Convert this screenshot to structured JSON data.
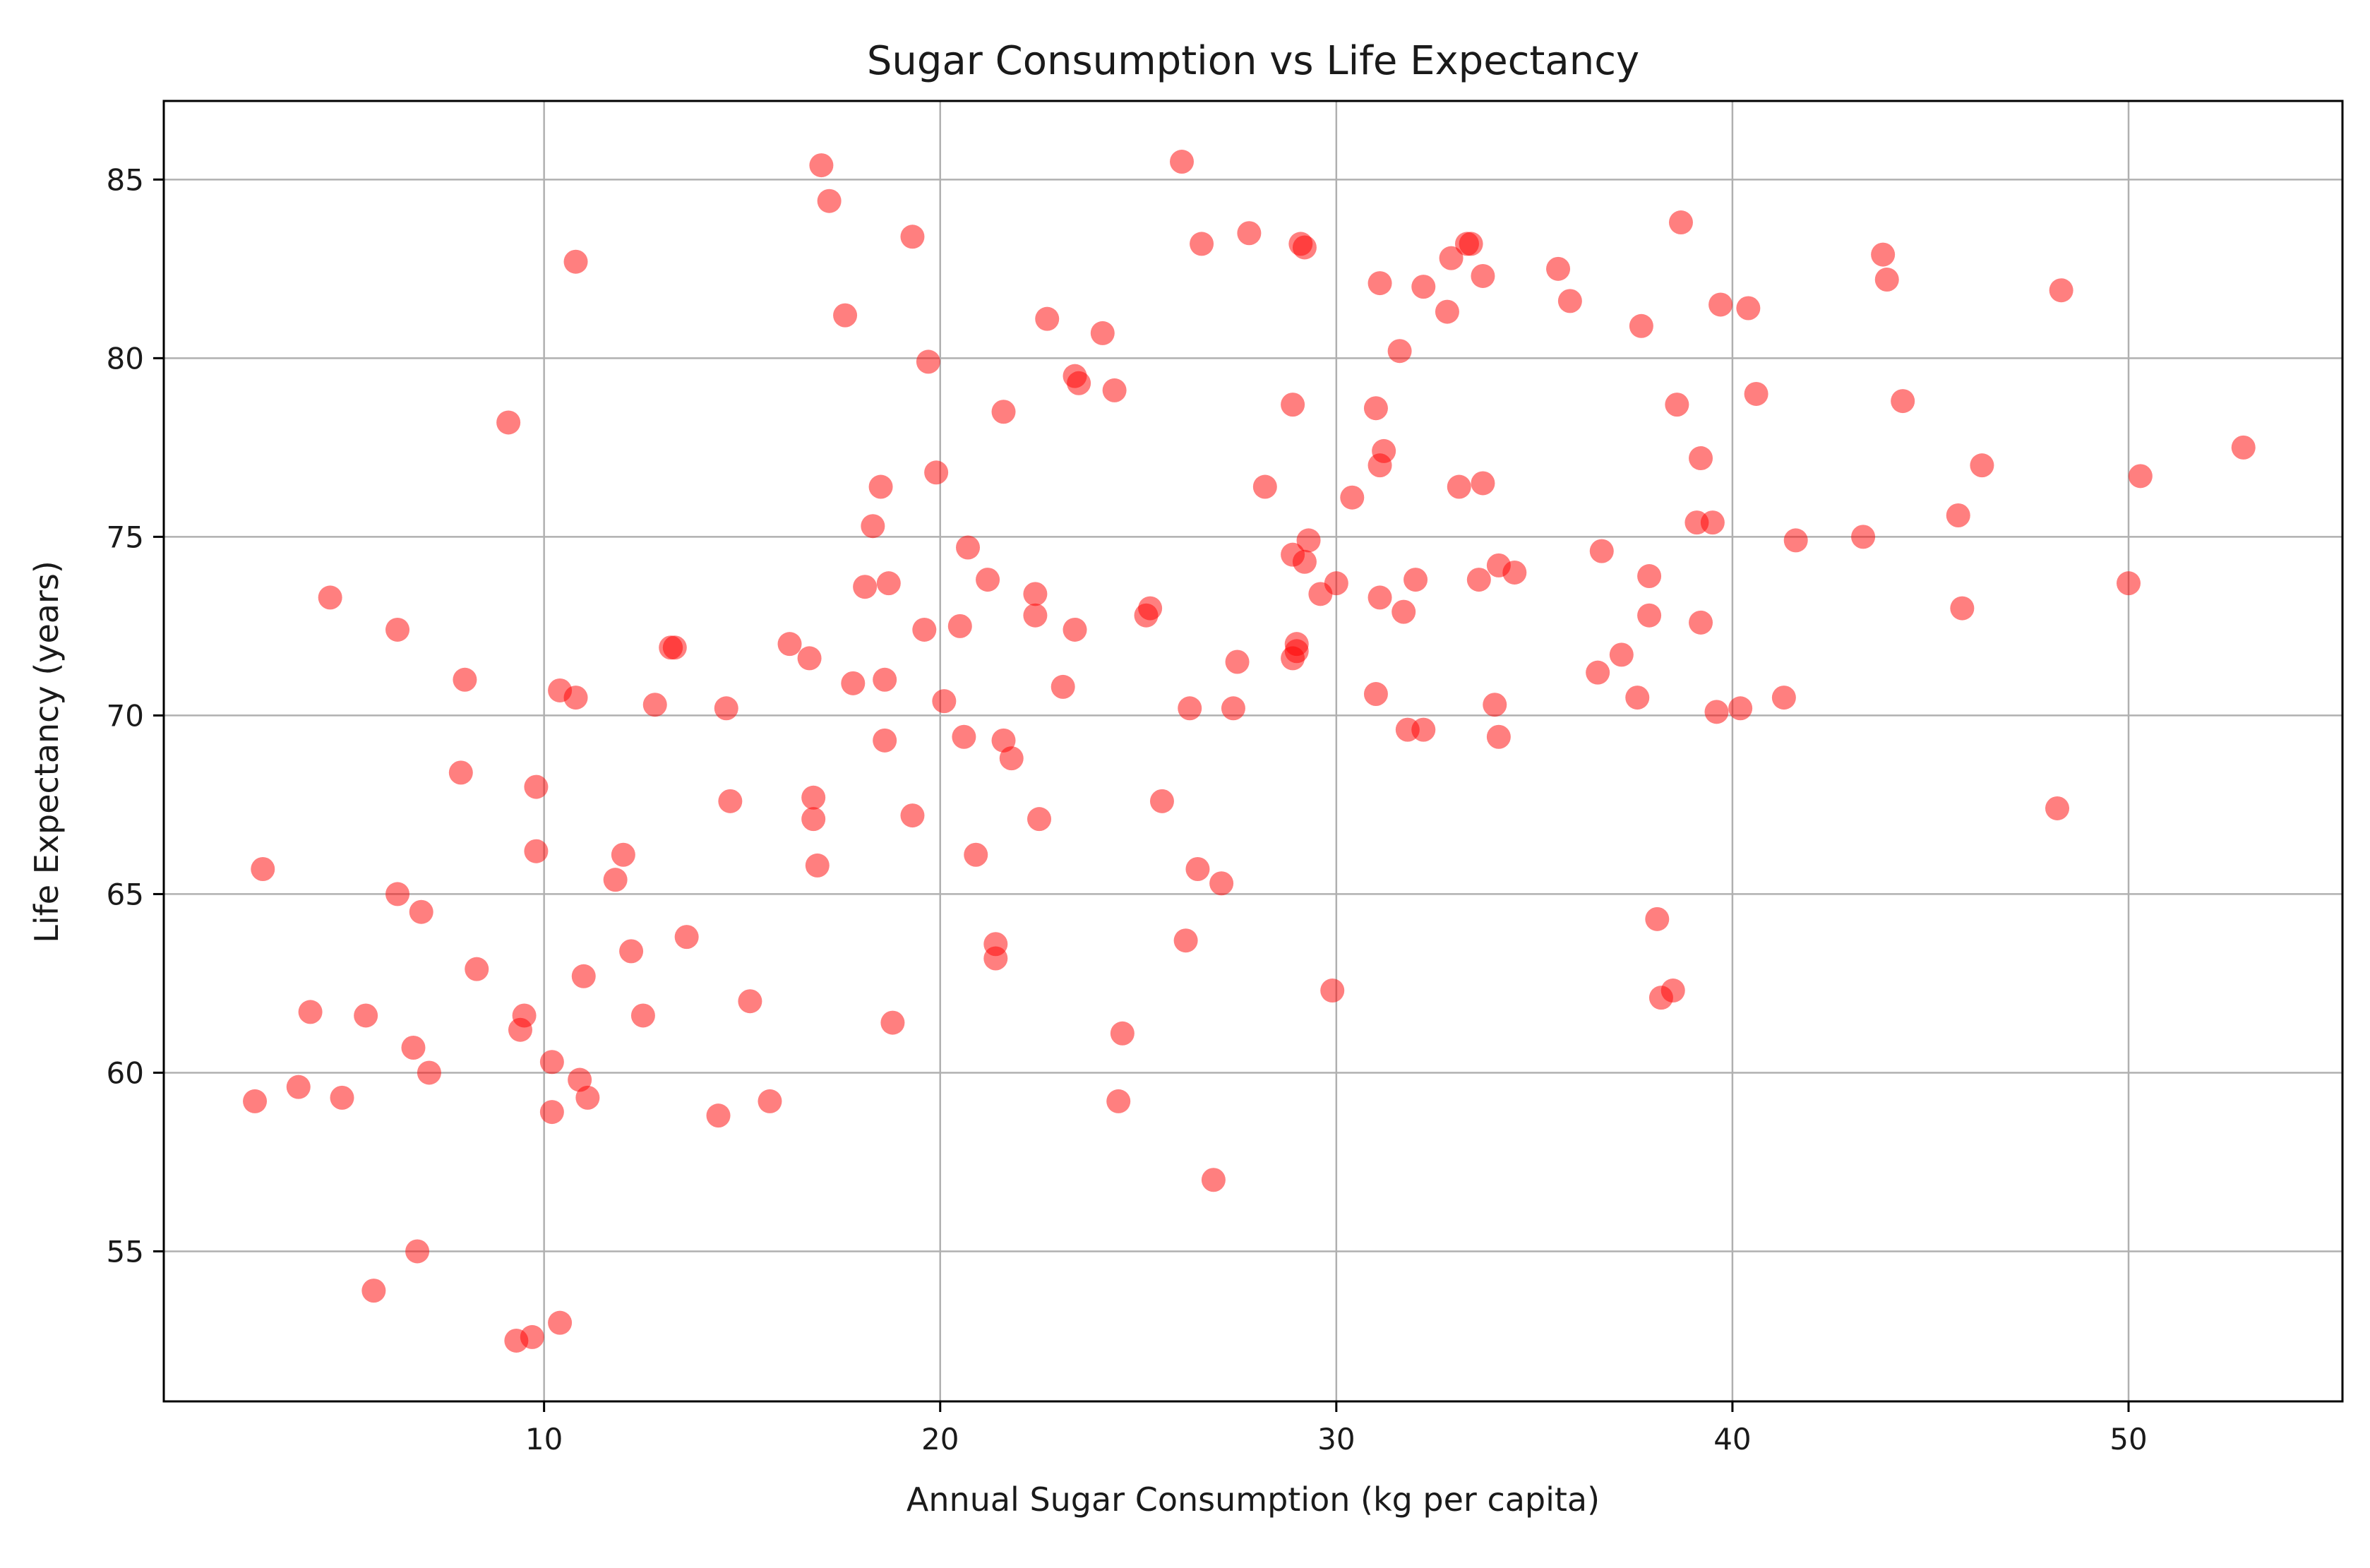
{
  "chart_data": {
    "type": "scatter",
    "title": "Sugar Consumption vs Life Expectancy",
    "xlabel": "Annual Sugar Consumption (kg per capita)",
    "ylabel": "Life Expectancy (years)",
    "xlim": [
      0.4,
      55.4
    ],
    "ylim": [
      50.8,
      87.2
    ],
    "xticks": [
      10,
      20,
      30,
      40,
      50
    ],
    "yticks": [
      55,
      60,
      65,
      70,
      75,
      80,
      85
    ],
    "grid": true,
    "point_color": "#ff0000",
    "point_opacity": 0.5,
    "points": [
      [
        2.9,
        65.7
      ],
      [
        2.7,
        59.2
      ],
      [
        3.8,
        59.6
      ],
      [
        4.1,
        61.7
      ],
      [
        4.6,
        73.3
      ],
      [
        4.9,
        59.3
      ],
      [
        5.5,
        61.6
      ],
      [
        5.7,
        53.9
      ],
      [
        6.3,
        72.4
      ],
      [
        6.3,
        65.0
      ],
      [
        6.7,
        60.7
      ],
      [
        6.8,
        55.0
      ],
      [
        6.9,
        64.5
      ],
      [
        7.1,
        60.0
      ],
      [
        7.9,
        68.4
      ],
      [
        8.0,
        71.0
      ],
      [
        8.3,
        62.9
      ],
      [
        9.1,
        78.2
      ],
      [
        9.3,
        52.5
      ],
      [
        9.4,
        61.2
      ],
      [
        9.5,
        61.6
      ],
      [
        9.7,
        52.6
      ],
      [
        9.8,
        68.0
      ],
      [
        9.8,
        66.2
      ],
      [
        10.2,
        58.9
      ],
      [
        10.2,
        60.3
      ],
      [
        10.4,
        70.7
      ],
      [
        10.4,
        53.0
      ],
      [
        10.8,
        82.7
      ],
      [
        10.8,
        70.5
      ],
      [
        10.9,
        59.8
      ],
      [
        11.0,
        62.7
      ],
      [
        11.1,
        59.3
      ],
      [
        11.8,
        65.4
      ],
      [
        12.0,
        66.1
      ],
      [
        12.2,
        63.4
      ],
      [
        12.5,
        61.6
      ],
      [
        12.8,
        70.3
      ],
      [
        13.2,
        71.9
      ],
      [
        13.3,
        71.9
      ],
      [
        13.6,
        63.8
      ],
      [
        14.4,
        58.8
      ],
      [
        14.6,
        70.2
      ],
      [
        14.7,
        67.6
      ],
      [
        15.2,
        62.0
      ],
      [
        15.7,
        59.2
      ],
      [
        16.2,
        72.0
      ],
      [
        16.7,
        71.6
      ],
      [
        16.8,
        67.7
      ],
      [
        16.8,
        67.1
      ],
      [
        16.9,
        65.8
      ],
      [
        17.0,
        85.4
      ],
      [
        17.2,
        84.4
      ],
      [
        17.6,
        81.2
      ],
      [
        17.8,
        70.9
      ],
      [
        18.1,
        73.6
      ],
      [
        18.3,
        75.3
      ],
      [
        18.5,
        76.4
      ],
      [
        18.6,
        71.0
      ],
      [
        18.6,
        69.3
      ],
      [
        18.7,
        73.7
      ],
      [
        18.8,
        61.4
      ],
      [
        19.3,
        83.4
      ],
      [
        19.3,
        67.2
      ],
      [
        19.6,
        72.4
      ],
      [
        19.7,
        79.9
      ],
      [
        19.9,
        76.8
      ],
      [
        20.1,
        70.4
      ],
      [
        20.5,
        72.5
      ],
      [
        20.6,
        69.4
      ],
      [
        20.7,
        74.7
      ],
      [
        20.9,
        66.1
      ],
      [
        21.2,
        73.8
      ],
      [
        21.4,
        63.6
      ],
      [
        21.4,
        63.2
      ],
      [
        21.6,
        69.3
      ],
      [
        21.6,
        78.5
      ],
      [
        21.8,
        68.8
      ],
      [
        22.4,
        72.8
      ],
      [
        22.4,
        73.4
      ],
      [
        22.5,
        67.1
      ],
      [
        22.7,
        81.1
      ],
      [
        23.1,
        70.8
      ],
      [
        23.4,
        79.5
      ],
      [
        23.5,
        79.3
      ],
      [
        23.4,
        72.4
      ],
      [
        24.1,
        80.7
      ],
      [
        24.4,
        79.1
      ],
      [
        24.5,
        59.2
      ],
      [
        24.6,
        61.1
      ],
      [
        25.2,
        72.8
      ],
      [
        25.3,
        73.0
      ],
      [
        25.6,
        67.6
      ],
      [
        26.1,
        85.5
      ],
      [
        26.2,
        63.7
      ],
      [
        26.3,
        70.2
      ],
      [
        26.5,
        65.7
      ],
      [
        26.6,
        83.2
      ],
      [
        26.9,
        57.0
      ],
      [
        27.1,
        65.3
      ],
      [
        27.4,
        70.2
      ],
      [
        27.5,
        71.5
      ],
      [
        27.8,
        83.5
      ],
      [
        28.2,
        76.4
      ],
      [
        28.9,
        78.7
      ],
      [
        28.9,
        74.5
      ],
      [
        28.9,
        71.6
      ],
      [
        29.0,
        72.0
      ],
      [
        29.0,
        71.8
      ],
      [
        29.1,
        83.2
      ],
      [
        29.2,
        83.1
      ],
      [
        29.2,
        74.3
      ],
      [
        29.3,
        74.9
      ],
      [
        29.6,
        73.4
      ],
      [
        29.9,
        62.3
      ],
      [
        30.0,
        73.7
      ],
      [
        30.4,
        76.1
      ],
      [
        31.0,
        78.6
      ],
      [
        31.0,
        70.6
      ],
      [
        31.1,
        82.1
      ],
      [
        31.1,
        77.0
      ],
      [
        31.1,
        73.3
      ],
      [
        31.2,
        77.4
      ],
      [
        31.6,
        80.2
      ],
      [
        31.7,
        72.9
      ],
      [
        31.8,
        69.6
      ],
      [
        32.0,
        73.8
      ],
      [
        32.2,
        82.0
      ],
      [
        32.2,
        69.6
      ],
      [
        32.8,
        81.3
      ],
      [
        32.9,
        82.8
      ],
      [
        33.1,
        76.4
      ],
      [
        33.3,
        83.2
      ],
      [
        33.4,
        83.2
      ],
      [
        33.6,
        73.8
      ],
      [
        33.7,
        82.3
      ],
      [
        33.7,
        76.5
      ],
      [
        34.0,
        70.3
      ],
      [
        34.1,
        74.2
      ],
      [
        34.1,
        69.4
      ],
      [
        34.5,
        74.0
      ],
      [
        35.6,
        82.5
      ],
      [
        35.9,
        81.6
      ],
      [
        36.6,
        71.2
      ],
      [
        36.7,
        74.6
      ],
      [
        37.2,
        71.7
      ],
      [
        37.6,
        70.5
      ],
      [
        37.7,
        80.9
      ],
      [
        37.9,
        72.8
      ],
      [
        37.9,
        73.9
      ],
      [
        38.1,
        64.3
      ],
      [
        38.2,
        62.1
      ],
      [
        38.5,
        62.3
      ],
      [
        38.6,
        78.7
      ],
      [
        38.7,
        83.8
      ],
      [
        39.1,
        75.4
      ],
      [
        39.2,
        77.2
      ],
      [
        39.2,
        72.6
      ],
      [
        39.5,
        75.4
      ],
      [
        39.6,
        70.1
      ],
      [
        39.7,
        81.5
      ],
      [
        40.2,
        70.2
      ],
      [
        40.4,
        81.4
      ],
      [
        40.6,
        79.0
      ],
      [
        41.3,
        70.5
      ],
      [
        41.6,
        74.9
      ],
      [
        43.3,
        75.0
      ],
      [
        43.8,
        82.9
      ],
      [
        43.9,
        82.2
      ],
      [
        44.3,
        78.8
      ],
      [
        45.7,
        75.6
      ],
      [
        45.8,
        73.0
      ],
      [
        46.3,
        77.0
      ],
      [
        48.2,
        67.4
      ],
      [
        48.3,
        81.9
      ],
      [
        50.0,
        73.7
      ],
      [
        50.3,
        76.7
      ],
      [
        52.9,
        77.5
      ]
    ]
  }
}
